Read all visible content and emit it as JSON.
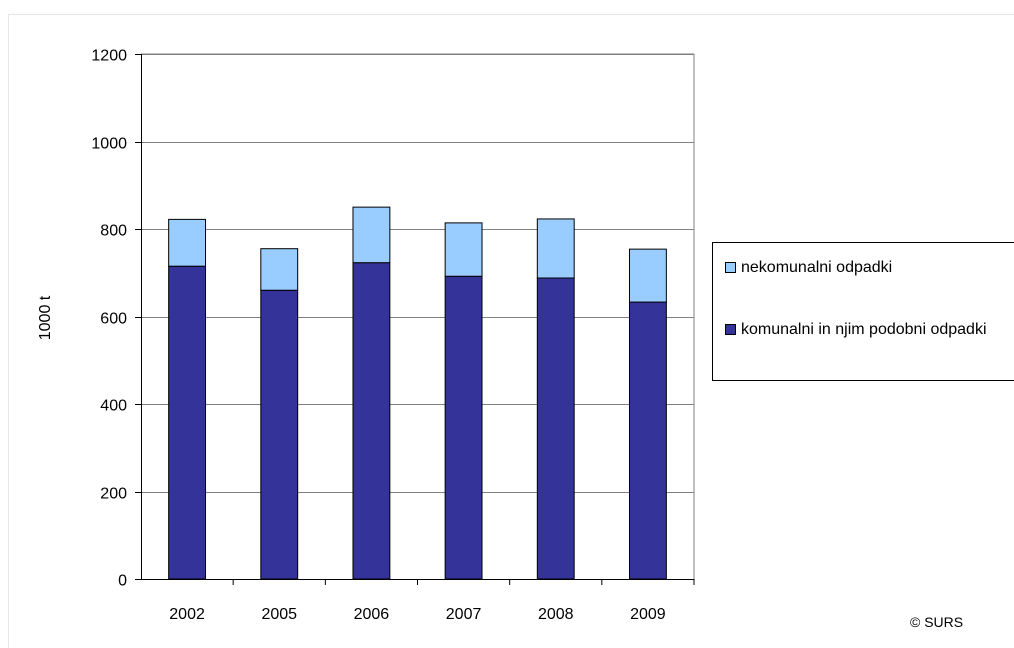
{
  "chart_data": {
    "type": "bar",
    "stacked": true,
    "categories": [
      "2002",
      "2005",
      "2006",
      "2007",
      "2008",
      "2009"
    ],
    "series": [
      {
        "name": "komunalni in njim podobni odpadki",
        "values": [
          715,
          660,
          723,
          692,
          688,
          633
        ],
        "color": "#333399"
      },
      {
        "name": "nekomunalni odpadki",
        "values": [
          107,
          95,
          127,
          122,
          135,
          121
        ],
        "color": "#99ccff"
      }
    ],
    "ylabel": "1000 t",
    "ylim": [
      0,
      1200
    ],
    "yticks": [
      0,
      200,
      400,
      600,
      800,
      1000,
      1200
    ],
    "grid": true,
    "legend_position": "right",
    "legend": {
      "items": [
        {
          "label": "nekomunalni odpadki",
          "color": "#99ccff"
        },
        {
          "label": "komunalni in njim podobni odpadki",
          "color": "#333399"
        }
      ]
    }
  },
  "copyright": "© SURS"
}
